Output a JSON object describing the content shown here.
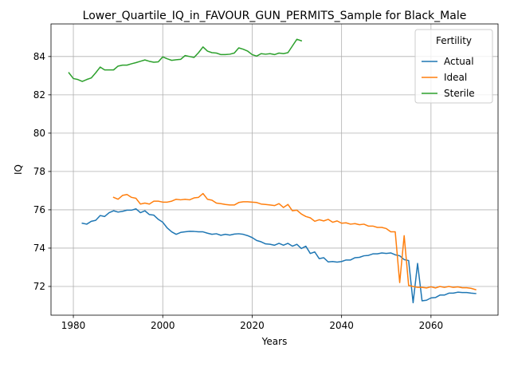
{
  "chart_data": {
    "type": "line",
    "title": "Lower_Quartile_IQ_in_FAVOUR_GUN_PERMITS_Sample for Black_Male",
    "xlabel": "Years",
    "ylabel": "IQ",
    "xlim": [
      1975,
      2075
    ],
    "ylim": [
      70.5,
      85.7
    ],
    "xticks": [
      1980,
      2000,
      2020,
      2040,
      2060
    ],
    "yticks": [
      72,
      74,
      76,
      78,
      80,
      82,
      84
    ],
    "grid": true,
    "legend": {
      "title": "Fertility",
      "position": "top-right"
    },
    "series": [
      {
        "name": "Actual",
        "color": "#1f77b4",
        "points": [
          [
            1982,
            75.3
          ],
          [
            1983,
            75.25
          ],
          [
            1984,
            75.4
          ],
          [
            1985,
            75.45
          ],
          [
            1986,
            75.7
          ],
          [
            1987,
            75.65
          ],
          [
            1988,
            75.85
          ],
          [
            1989,
            75.95
          ],
          [
            1990,
            75.88
          ],
          [
            1991,
            75.92
          ],
          [
            1992,
            75.98
          ],
          [
            1993,
            75.98
          ],
          [
            1994,
            76.05
          ],
          [
            1995,
            75.85
          ],
          [
            1996,
            75.95
          ],
          [
            1997,
            75.75
          ],
          [
            1998,
            75.72
          ],
          [
            1999,
            75.5
          ],
          [
            2000,
            75.35
          ],
          [
            2001,
            75.05
          ],
          [
            2002,
            74.85
          ],
          [
            2003,
            74.72
          ],
          [
            2004,
            74.82
          ],
          [
            2005,
            74.85
          ],
          [
            2006,
            74.88
          ],
          [
            2007,
            74.87
          ],
          [
            2008,
            74.85
          ],
          [
            2009,
            74.85
          ],
          [
            2010,
            74.78
          ],
          [
            2011,
            74.72
          ],
          [
            2012,
            74.75
          ],
          [
            2013,
            74.67
          ],
          [
            2014,
            74.72
          ],
          [
            2015,
            74.68
          ],
          [
            2016,
            74.73
          ],
          [
            2017,
            74.75
          ],
          [
            2018,
            74.72
          ],
          [
            2019,
            74.65
          ],
          [
            2020,
            74.55
          ],
          [
            2021,
            74.4
          ],
          [
            2022,
            74.33
          ],
          [
            2023,
            74.22
          ],
          [
            2024,
            74.2
          ],
          [
            2025,
            74.15
          ],
          [
            2026,
            74.25
          ],
          [
            2027,
            74.15
          ],
          [
            2028,
            74.25
          ],
          [
            2029,
            74.1
          ],
          [
            2030,
            74.2
          ],
          [
            2031,
            73.98
          ],
          [
            2032,
            74.1
          ],
          [
            2033,
            73.72
          ],
          [
            2034,
            73.8
          ],
          [
            2035,
            73.45
          ],
          [
            2036,
            73.5
          ],
          [
            2037,
            73.28
          ],
          [
            2038,
            73.3
          ],
          [
            2039,
            73.27
          ],
          [
            2040,
            73.3
          ],
          [
            2041,
            73.38
          ],
          [
            2042,
            73.38
          ],
          [
            2043,
            73.5
          ],
          [
            2044,
            73.52
          ],
          [
            2045,
            73.6
          ],
          [
            2046,
            73.62
          ],
          [
            2047,
            73.7
          ],
          [
            2048,
            73.7
          ],
          [
            2049,
            73.75
          ],
          [
            2050,
            73.72
          ],
          [
            2051,
            73.75
          ],
          [
            2052,
            73.65
          ],
          [
            2053,
            73.6
          ],
          [
            2054,
            73.4
          ],
          [
            2055,
            73.35
          ],
          [
            2056,
            71.15
          ],
          [
            2057,
            73.2
          ],
          [
            2058,
            71.25
          ],
          [
            2059,
            71.28
          ],
          [
            2060,
            71.4
          ],
          [
            2061,
            71.42
          ],
          [
            2062,
            71.55
          ],
          [
            2063,
            71.55
          ],
          [
            2064,
            71.65
          ],
          [
            2065,
            71.65
          ],
          [
            2066,
            71.7
          ],
          [
            2067,
            71.68
          ],
          [
            2068,
            71.68
          ],
          [
            2069,
            71.65
          ],
          [
            2070,
            71.63
          ]
        ]
      },
      {
        "name": "Ideal",
        "color": "#ff7f0e",
        "points": [
          [
            1989,
            76.65
          ],
          [
            1990,
            76.55
          ],
          [
            1991,
            76.75
          ],
          [
            1992,
            76.8
          ],
          [
            1993,
            76.65
          ],
          [
            1994,
            76.6
          ],
          [
            1995,
            76.3
          ],
          [
            1996,
            76.35
          ],
          [
            1997,
            76.3
          ],
          [
            1998,
            76.45
          ],
          [
            1999,
            76.45
          ],
          [
            2000,
            76.4
          ],
          [
            2001,
            76.4
          ],
          [
            2002,
            76.45
          ],
          [
            2003,
            76.55
          ],
          [
            2004,
            76.52
          ],
          [
            2005,
            76.55
          ],
          [
            2006,
            76.52
          ],
          [
            2007,
            76.62
          ],
          [
            2008,
            76.65
          ],
          [
            2009,
            76.85
          ],
          [
            2010,
            76.55
          ],
          [
            2011,
            76.5
          ],
          [
            2012,
            76.35
          ],
          [
            2013,
            76.32
          ],
          [
            2014,
            76.28
          ],
          [
            2015,
            76.25
          ],
          [
            2016,
            76.25
          ],
          [
            2017,
            76.38
          ],
          [
            2018,
            76.42
          ],
          [
            2019,
            76.42
          ],
          [
            2020,
            76.4
          ],
          [
            2021,
            76.38
          ],
          [
            2022,
            76.3
          ],
          [
            2023,
            76.28
          ],
          [
            2024,
            76.25
          ],
          [
            2025,
            76.22
          ],
          [
            2026,
            76.32
          ],
          [
            2027,
            76.12
          ],
          [
            2028,
            76.28
          ],
          [
            2029,
            75.95
          ],
          [
            2030,
            75.98
          ],
          [
            2031,
            75.78
          ],
          [
            2032,
            75.65
          ],
          [
            2033,
            75.58
          ],
          [
            2034,
            75.4
          ],
          [
            2035,
            75.48
          ],
          [
            2036,
            75.42
          ],
          [
            2037,
            75.5
          ],
          [
            2038,
            75.35
          ],
          [
            2039,
            75.42
          ],
          [
            2040,
            75.3
          ],
          [
            2041,
            75.32
          ],
          [
            2042,
            75.25
          ],
          [
            2043,
            75.28
          ],
          [
            2044,
            75.22
          ],
          [
            2045,
            75.25
          ],
          [
            2046,
            75.15
          ],
          [
            2047,
            75.15
          ],
          [
            2048,
            75.08
          ],
          [
            2049,
            75.08
          ],
          [
            2050,
            75.02
          ],
          [
            2051,
            74.85
          ],
          [
            2052,
            74.85
          ],
          [
            2053,
            72.2
          ],
          [
            2054,
            74.65
          ],
          [
            2055,
            72.05
          ],
          [
            2056,
            72.0
          ],
          [
            2057,
            71.95
          ],
          [
            2058,
            71.95
          ],
          [
            2059,
            71.92
          ],
          [
            2060,
            71.98
          ],
          [
            2061,
            71.92
          ],
          [
            2062,
            72.0
          ],
          [
            2063,
            71.95
          ],
          [
            2064,
            72.0
          ],
          [
            2065,
            71.95
          ],
          [
            2066,
            71.98
          ],
          [
            2067,
            71.93
          ],
          [
            2068,
            71.93
          ],
          [
            2069,
            71.9
          ],
          [
            2070,
            71.83
          ]
        ]
      },
      {
        "name": "Sterile",
        "color": "#2ca02c",
        "points": [
          [
            1979,
            83.15
          ],
          [
            1980,
            82.85
          ],
          [
            1981,
            82.8
          ],
          [
            1982,
            82.7
          ],
          [
            1983,
            82.8
          ],
          [
            1984,
            82.88
          ],
          [
            1985,
            83.15
          ],
          [
            1986,
            83.45
          ],
          [
            1987,
            83.3
          ],
          [
            1988,
            83.3
          ],
          [
            1989,
            83.3
          ],
          [
            1990,
            83.5
          ],
          [
            1991,
            83.55
          ],
          [
            1992,
            83.55
          ],
          [
            1993,
            83.62
          ],
          [
            1994,
            83.68
          ],
          [
            1995,
            83.75
          ],
          [
            1996,
            83.82
          ],
          [
            1997,
            83.75
          ],
          [
            1998,
            83.7
          ],
          [
            1999,
            83.72
          ],
          [
            2000,
            83.98
          ],
          [
            2001,
            83.88
          ],
          [
            2002,
            83.8
          ],
          [
            2003,
            83.83
          ],
          [
            2004,
            83.85
          ],
          [
            2005,
            84.05
          ],
          [
            2006,
            84.0
          ],
          [
            2007,
            83.95
          ],
          [
            2008,
            84.2
          ],
          [
            2009,
            84.5
          ],
          [
            2010,
            84.28
          ],
          [
            2011,
            84.2
          ],
          [
            2012,
            84.18
          ],
          [
            2013,
            84.1
          ],
          [
            2014,
            84.1
          ],
          [
            2015,
            84.12
          ],
          [
            2016,
            84.18
          ],
          [
            2017,
            84.45
          ],
          [
            2018,
            84.38
          ],
          [
            2019,
            84.28
          ],
          [
            2020,
            84.1
          ],
          [
            2021,
            84.02
          ],
          [
            2022,
            84.15
          ],
          [
            2023,
            84.12
          ],
          [
            2024,
            84.15
          ],
          [
            2025,
            84.1
          ],
          [
            2026,
            84.18
          ],
          [
            2027,
            84.15
          ],
          [
            2028,
            84.2
          ],
          [
            2029,
            84.55
          ],
          [
            2030,
            84.9
          ],
          [
            2031,
            84.82
          ]
        ]
      }
    ]
  }
}
